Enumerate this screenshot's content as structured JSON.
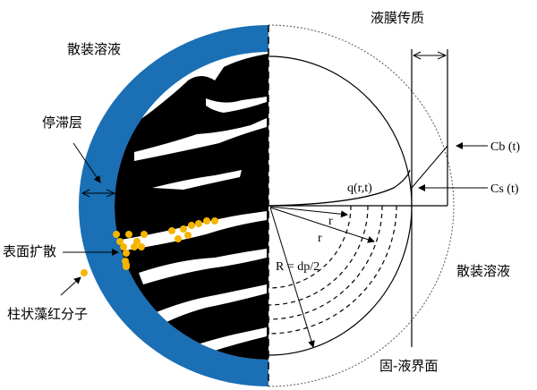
{
  "labels": {
    "bulk_solution_left": "散装溶液",
    "film_mass_transfer": "液膜传质",
    "stagnant_layer": "停滞层",
    "surface_diffusion": "表面扩散",
    "adsorbate": "柱状藻红分子",
    "bulk_solution_right": "散装溶液",
    "solid_liquid_interface": "固-液界面",
    "q": "q(r,t)",
    "cb": "Cb (t)",
    "cs": "Cs (t)",
    "r1": "r",
    "r2": "r",
    "R": "R = dp/2"
  },
  "colors": {
    "film": "#1a6fb5",
    "particle": "#000000",
    "dots": "#f5b400"
  }
}
